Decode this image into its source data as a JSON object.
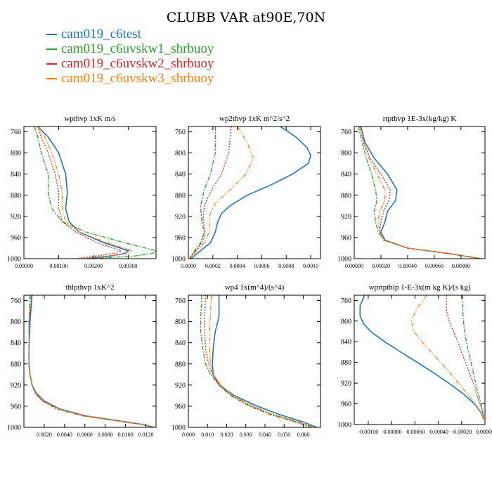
{
  "title": "CLUBB VAR at90E,70N",
  "legend": [
    {
      "name": "cam019_c6test",
      "color": "#1f77b4"
    },
    {
      "name": "cam019_c6uvskw1_shrbuoy",
      "color": "#2ca02c"
    },
    {
      "name": "cam019_c6uvskw2_shrbuoy",
      "color": "#d62728"
    },
    {
      "name": "cam019_c6uvskw3_shrbuoy",
      "color": "#ff7f0e"
    }
  ],
  "chart_data": [
    {
      "type": "line",
      "title": "wpthvp  1xK m/s",
      "ylim": [
        1000,
        750
      ],
      "y_ticks": [
        "760",
        "800",
        "840",
        "880",
        "920",
        "960",
        "1000"
      ],
      "y_tick_values": [
        760,
        800,
        840,
        880,
        920,
        960,
        1000
      ],
      "xlim": [
        0,
        0.0038
      ],
      "x_ticks": [
        "0.00000",
        "0.00100",
        "0.00200",
        "0.00300"
      ],
      "x_tick_values": [
        0,
        0.001,
        0.002,
        0.003
      ],
      "series": [
        {
          "name": "cam019_c6test",
          "y": [
            750,
            770,
            800,
            840,
            875,
            905,
            930,
            950,
            970,
            985,
            990,
            995,
            1000
          ],
          "x": [
            0.0004,
            0.0007,
            0.001,
            0.0012,
            0.00125,
            0.0012,
            0.0013,
            0.0016,
            0.0023,
            0.003,
            0.0029,
            0.0025,
            0.0018
          ]
        },
        {
          "name": "cam019_c6uvskw1_shrbuoy",
          "y": [
            750,
            770,
            800,
            840,
            875,
            905,
            930,
            950,
            970,
            985,
            990,
            995,
            1000
          ],
          "x": [
            0.0003,
            0.0004,
            0.0005,
            0.0007,
            0.0007,
            0.0008,
            0.0011,
            0.0018,
            0.0029,
            0.0038,
            0.0037,
            0.0032,
            0.002
          ]
        },
        {
          "name": "cam019_c6uvskw2_shrbuoy",
          "y": [
            750,
            770,
            800,
            840,
            875,
            905,
            930,
            950,
            970,
            985,
            990,
            995,
            1000
          ],
          "x": [
            0.0004,
            0.0005,
            0.0007,
            0.0009,
            0.001,
            0.001,
            0.0011,
            0.0015,
            0.0021,
            0.0028,
            0.0026,
            0.0021,
            0.0015
          ]
        },
        {
          "name": "cam019_c6uvskw3_shrbuoy",
          "y": [
            750,
            770,
            800,
            840,
            875,
            905,
            930,
            950,
            970,
            985,
            990,
            995,
            1000
          ],
          "x": [
            0.0004,
            0.0006,
            0.0008,
            0.001,
            0.0011,
            0.0011,
            0.0012,
            0.0016,
            0.0024,
            0.0031,
            0.003,
            0.0024,
            0.0016
          ]
        }
      ]
    },
    {
      "type": "line",
      "title": "wp2thvp  1xK m^2/s^2",
      "ylim": [
        1000,
        750
      ],
      "y_ticks": [
        "760",
        "800",
        "840",
        "880",
        "920",
        "960",
        "1000"
      ],
      "y_tick_values": [
        760,
        800,
        840,
        880,
        920,
        960,
        1000
      ],
      "xlim": [
        0,
        0.00108
      ],
      "x_ticks": [
        "0.0000",
        "0.0002",
        "0.0004",
        "0.0006",
        "0.0008",
        "0.0010"
      ],
      "x_tick_values": [
        0,
        0.0002,
        0.0004,
        0.0006,
        0.0008,
        0.001
      ],
      "series": [
        {
          "name": "cam019_c6test",
          "y": [
            750,
            770,
            790,
            805,
            820,
            840,
            860,
            880,
            900,
            915,
            930,
            950,
            970,
            985,
            1000
          ],
          "x": [
            0.00075,
            0.00088,
            0.00097,
            0.001,
            0.00098,
            0.00085,
            0.00068,
            0.00048,
            0.00034,
            0.00027,
            0.00024,
            0.00022,
            0.00018,
            0.0001,
            2e-05
          ]
        },
        {
          "name": "cam019_c6uvskw1_shrbuoy",
          "y": [
            750,
            800,
            840,
            870,
            900,
            930,
            950,
            970,
            985,
            1000
          ],
          "x": [
            0.00022,
            0.00022,
            0.00018,
            0.00013,
            0.0001,
            0.00011,
            0.00013,
            0.0001,
            5e-05,
            1e-05
          ]
        },
        {
          "name": "cam019_c6uvskw2_shrbuoy",
          "y": [
            750,
            800,
            840,
            870,
            900,
            930,
            950,
            970,
            985,
            1000
          ],
          "x": [
            0.00035,
            0.00033,
            0.00027,
            0.00019,
            0.00013,
            0.00012,
            0.00014,
            0.00011,
            6e-05,
            1e-05
          ]
        },
        {
          "name": "cam019_c6uvskw3_shrbuoy",
          "y": [
            750,
            780,
            810,
            840,
            870,
            895,
            920,
            950,
            970,
            985,
            1000
          ],
          "x": [
            0.0004,
            0.00048,
            0.00053,
            0.00047,
            0.00034,
            0.00022,
            0.00017,
            0.00017,
            0.00013,
            7e-05,
            1e-05
          ]
        }
      ]
    },
    {
      "type": "line",
      "title": "rtpthvp  1E-3x(kg/kg) K",
      "ylim": [
        1000,
        750
      ],
      "y_ticks": [
        "760",
        "800",
        "840",
        "880",
        "920",
        "960",
        "1000"
      ],
      "y_tick_values": [
        760,
        800,
        840,
        880,
        920,
        960,
        1000
      ],
      "xlim": [
        0,
        0.00098
      ],
      "x_ticks": [
        "0.00000",
        "0.00020",
        "0.00040",
        "0.00060",
        "0.00080"
      ],
      "x_tick_values": [
        0,
        0.0002,
        0.0004,
        0.0006,
        0.0008
      ],
      "series": [
        {
          "name": "cam019_c6test",
          "y": [
            750,
            780,
            810,
            840,
            870,
            890,
            910,
            930,
            950,
            965,
            980,
            990,
            1000
          ],
          "x": [
            5e-05,
            8e-05,
            0.00015,
            0.00025,
            0.00032,
            0.00031,
            0.00025,
            0.00023,
            0.0002,
            0.00023,
            0.0004,
            0.0007,
            0.00095
          ]
        },
        {
          "name": "cam019_c6uvskw1_shrbuoy",
          "y": [
            750,
            780,
            810,
            840,
            870,
            890,
            910,
            930,
            950,
            965,
            980,
            990,
            1000
          ],
          "x": [
            3e-05,
            6e-05,
            9e-05,
            0.00013,
            0.00016,
            0.00017,
            0.00015,
            0.00016,
            0.00018,
            0.00022,
            0.0004,
            0.0007,
            0.00095
          ]
        },
        {
          "name": "cam019_c6uvskw2_shrbuoy",
          "y": [
            750,
            780,
            810,
            840,
            870,
            890,
            910,
            930,
            950,
            965,
            980,
            990,
            1000
          ],
          "x": [
            4e-05,
            7e-05,
            0.00012,
            0.0002,
            0.00027,
            0.00026,
            0.00022,
            0.0002,
            0.00019,
            0.00022,
            0.0004,
            0.0007,
            0.00095
          ]
        },
        {
          "name": "cam019_c6uvskw3_shrbuoy",
          "y": [
            750,
            780,
            810,
            840,
            870,
            890,
            910,
            930,
            950,
            965,
            980,
            990,
            1000
          ],
          "x": [
            4e-05,
            7e-05,
            0.00011,
            0.00017,
            0.00023,
            0.00023,
            0.00019,
            0.00018,
            0.00019,
            0.00022,
            0.0004,
            0.0007,
            0.00095
          ]
        }
      ]
    },
    {
      "type": "line",
      "title": "thlpthvp  1xK^2",
      "ylim": [
        1000,
        750
      ],
      "y_ticks": [
        "760",
        "800",
        "840",
        "880",
        "920",
        "960",
        "1000"
      ],
      "y_tick_values": [
        760,
        800,
        840,
        880,
        920,
        960,
        1000
      ],
      "xlim": [
        0,
        0.013
      ],
      "x_ticks": [
        "0.0020",
        "0.0040",
        "0.0060",
        "0.0080",
        "0.0100",
        "0.0120"
      ],
      "x_tick_values": [
        0.002,
        0.004,
        0.006,
        0.008,
        0.01,
        0.012
      ],
      "series": [
        {
          "name": "cam019_c6test",
          "y": [
            750,
            800,
            850,
            880,
            900,
            920,
            935,
            950,
            965,
            978,
            988,
            995,
            1000
          ],
          "x": [
            0.0008,
            0.0006,
            0.0005,
            0.0005,
            0.0006,
            0.0008,
            0.0012,
            0.002,
            0.0035,
            0.006,
            0.0095,
            0.0118,
            0.0127
          ]
        },
        {
          "name": "cam019_c6uvskw1_shrbuoy",
          "y": [
            750,
            800,
            850,
            880,
            900,
            920,
            935,
            950,
            965,
            978,
            988,
            995,
            1000
          ],
          "x": [
            0.0006,
            0.0005,
            0.0005,
            0.0005,
            0.0006,
            0.0008,
            0.0011,
            0.0018,
            0.0032,
            0.0057,
            0.0092,
            0.0117,
            0.013
          ]
        },
        {
          "name": "cam019_c6uvskw2_shrbuoy",
          "y": [
            750,
            800,
            850,
            880,
            900,
            920,
            935,
            950,
            965,
            978,
            988,
            995,
            1000
          ],
          "x": [
            0.0007,
            0.0005,
            0.0005,
            0.0005,
            0.0006,
            0.0008,
            0.0011,
            0.0018,
            0.0033,
            0.0058,
            0.0093,
            0.0118,
            0.0128
          ]
        },
        {
          "name": "cam019_c6uvskw3_shrbuoy",
          "y": [
            750,
            800,
            850,
            880,
            900,
            920,
            935,
            950,
            965,
            978,
            988,
            995,
            1000
          ],
          "x": [
            0.0007,
            0.0005,
            0.0005,
            0.0005,
            0.0006,
            0.0008,
            0.0011,
            0.0019,
            0.0034,
            0.0059,
            0.0094,
            0.0118,
            0.0127
          ]
        }
      ]
    },
    {
      "type": "line",
      "title": "wp4  1x(m^4)/(s^4)",
      "ylim": [
        1000,
        750
      ],
      "y_ticks": [
        "760",
        "800",
        "840",
        "880",
        "920",
        "960",
        "1000"
      ],
      "y_tick_values": [
        760,
        800,
        840,
        880,
        920,
        960,
        1000
      ],
      "xlim": [
        0,
        0.069
      ],
      "x_ticks": [
        "0.000",
        "0.010",
        "0.020",
        "0.030",
        "0.040",
        "0.050",
        "0.060"
      ],
      "x_tick_values": [
        0,
        0.01,
        0.02,
        0.03,
        0.04,
        0.05,
        0.06
      ],
      "series": [
        {
          "name": "cam019_c6test",
          "y": [
            750,
            790,
            820,
            850,
            880,
            900,
            920,
            940,
            960,
            975,
            990,
            1000
          ],
          "x": [
            0.016,
            0.016,
            0.014,
            0.013,
            0.0125,
            0.013,
            0.016,
            0.024,
            0.036,
            0.047,
            0.06,
            0.067
          ]
        },
        {
          "name": "cam019_c6uvskw1_shrbuoy",
          "y": [
            750,
            790,
            820,
            850,
            880,
            900,
            920,
            940,
            960,
            975,
            990,
            1000
          ],
          "x": [
            0.007,
            0.0065,
            0.0065,
            0.0075,
            0.009,
            0.0115,
            0.016,
            0.022,
            0.032,
            0.042,
            0.056,
            0.064
          ]
        },
        {
          "name": "cam019_c6uvskw2_shrbuoy",
          "y": [
            750,
            790,
            820,
            850,
            880,
            900,
            920,
            940,
            960,
            975,
            990,
            1000
          ],
          "x": [
            0.009,
            0.0085,
            0.0085,
            0.009,
            0.0105,
            0.0125,
            0.0165,
            0.0225,
            0.033,
            0.043,
            0.057,
            0.065
          ]
        },
        {
          "name": "cam019_c6uvskw3_shrbuoy",
          "y": [
            750,
            790,
            820,
            850,
            880,
            900,
            920,
            940,
            960,
            975,
            990,
            1000
          ],
          "x": [
            0.012,
            0.0115,
            0.011,
            0.011,
            0.0115,
            0.013,
            0.017,
            0.023,
            0.034,
            0.044,
            0.058,
            0.066
          ]
        }
      ]
    },
    {
      "type": "line",
      "title": "wprtpthlp  1-E-3x(m kg K)/(s kg)",
      "ylim": [
        1000,
        750
      ],
      "y_ticks": [
        "760",
        "800",
        "840",
        "880",
        "920",
        "960",
        "1000"
      ],
      "y_tick_values": [
        760,
        800,
        840,
        880,
        920,
        960,
        1000
      ],
      "xlim": [
        -0.00112,
        0
      ],
      "x_ticks": [
        "-0.00100",
        "-0.00080",
        "-0.00060",
        "-0.00040",
        "-0.00020",
        "0.00000"
      ],
      "x_tick_values": [
        -0.001,
        -0.0008,
        -0.0006,
        -0.0004,
        -0.0002,
        0
      ],
      "series": [
        {
          "name": "cam019_c6test",
          "y": [
            750,
            770,
            790,
            805,
            820,
            840,
            860,
            880,
            900,
            920,
            940,
            960,
            975,
            990
          ],
          "x": [
            -0.00103,
            -0.00107,
            -0.00107,
            -0.00104,
            -0.00098,
            -0.00086,
            -0.00072,
            -0.00058,
            -0.00044,
            -0.00031,
            -0.00019,
            -9e-05,
            -4e-05,
            -1e-05
          ]
        },
        {
          "name": "cam019_c6uvskw1_shrbuoy",
          "y": [
            750,
            780,
            810,
            840,
            870,
            900,
            930,
            955,
            975,
            990
          ],
          "x": [
            -0.00019,
            -0.00019,
            -0.00018,
            -0.00016,
            -0.00013,
            -0.0001,
            -7e-05,
            -4e-05,
            -2e-05,
            -1e-05
          ]
        },
        {
          "name": "cam019_c6uvskw2_shrbuoy",
          "y": [
            750,
            780,
            805,
            830,
            860,
            890,
            920,
            950,
            975,
            990
          ],
          "x": [
            -0.00033,
            -0.00033,
            -0.0003,
            -0.00025,
            -0.0002,
            -0.00015,
            -0.0001,
            -6e-05,
            -2e-05,
            -1e-05
          ]
        },
        {
          "name": "cam019_c6uvskw3_shrbuoy",
          "y": [
            750,
            775,
            800,
            820,
            845,
            870,
            900,
            930,
            955,
            975,
            990
          ],
          "x": [
            -0.0005,
            -0.00058,
            -0.00063,
            -0.00061,
            -0.00052,
            -0.00042,
            -0.0003,
            -0.00019,
            -0.0001,
            -4e-05,
            -1e-05
          ]
        }
      ]
    }
  ]
}
